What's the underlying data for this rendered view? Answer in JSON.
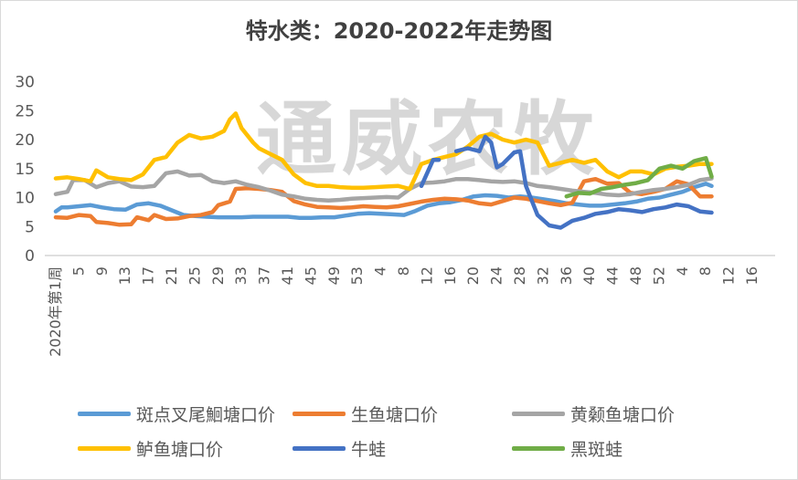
{
  "chart_data": {
    "type": "line",
    "title": "特水类：2020-2022年走势图",
    "watermark": "通威农牧",
    "ylim": [
      0,
      30
    ],
    "yticks": [
      0,
      5,
      10,
      15,
      20,
      25,
      30
    ],
    "xticks": [
      "2020年第1周",
      "5",
      "9",
      "13",
      "17",
      "21",
      "25",
      "29",
      "33",
      "37",
      "41",
      "45",
      "49",
      "53",
      "4",
      "8",
      "12",
      "16",
      "20",
      "24",
      "28",
      "32",
      "36",
      "40",
      "44",
      "48",
      "52",
      "4",
      "8",
      "12",
      "16"
    ],
    "series": [
      {
        "name": "斑点叉尾鮰塘口价",
        "color": "#5b9bd5",
        "values": [
          [
            1,
            7.6
          ],
          [
            2,
            8.3
          ],
          [
            3,
            8.3
          ],
          [
            6,
            8.6
          ],
          [
            7,
            8.7
          ],
          [
            9,
            8.3
          ],
          [
            11,
            8.0
          ],
          [
            13,
            7.9
          ],
          [
            15,
            8.8
          ],
          [
            17,
            9.0
          ],
          [
            19,
            8.6
          ],
          [
            21,
            7.8
          ],
          [
            23,
            7.0
          ],
          [
            25,
            6.8
          ],
          [
            27,
            6.7
          ],
          [
            29,
            6.6
          ],
          [
            31,
            6.6
          ],
          [
            33,
            6.6
          ],
          [
            35,
            6.7
          ],
          [
            37,
            6.7
          ],
          [
            39,
            6.7
          ],
          [
            41,
            6.7
          ],
          [
            43,
            6.5
          ],
          [
            45,
            6.5
          ],
          [
            47,
            6.6
          ],
          [
            49,
            6.6
          ],
          [
            51,
            6.9
          ],
          [
            53,
            7.2
          ],
          [
            55,
            7.3
          ],
          [
            57,
            7.2
          ],
          [
            59,
            7.1
          ],
          [
            61,
            7.0
          ],
          [
            63,
            7.7
          ],
          [
            65,
            8.6
          ],
          [
            67,
            9.0
          ],
          [
            69,
            9.2
          ],
          [
            71,
            9.6
          ],
          [
            73,
            10.2
          ],
          [
            75,
            10.4
          ],
          [
            77,
            10.3
          ],
          [
            79,
            10.0
          ],
          [
            81,
            10.2
          ],
          [
            83,
            10.0
          ],
          [
            85,
            9.7
          ],
          [
            87,
            9.4
          ],
          [
            89,
            9.0
          ],
          [
            91,
            8.8
          ],
          [
            93,
            8.6
          ],
          [
            95,
            8.6
          ],
          [
            97,
            8.8
          ],
          [
            99,
            9.0
          ],
          [
            101,
            9.3
          ],
          [
            103,
            9.8
          ],
          [
            105,
            10.0
          ],
          [
            107,
            10.5
          ],
          [
            109,
            11.0
          ],
          [
            111,
            11.8
          ],
          [
            113,
            12.4
          ],
          [
            114,
            12.0
          ]
        ]
      },
      {
        "name": "生鱼塘口价",
        "color": "#ed7d31",
        "values": [
          [
            1,
            6.6
          ],
          [
            3,
            6.5
          ],
          [
            5,
            7.0
          ],
          [
            7,
            6.8
          ],
          [
            8,
            5.8
          ],
          [
            10,
            5.6
          ],
          [
            12,
            5.3
          ],
          [
            14,
            5.4
          ],
          [
            15,
            6.6
          ],
          [
            17,
            6.1
          ],
          [
            18,
            7.0
          ],
          [
            20,
            6.3
          ],
          [
            22,
            6.4
          ],
          [
            24,
            6.8
          ],
          [
            26,
            7.0
          ],
          [
            28,
            7.5
          ],
          [
            29,
            8.7
          ],
          [
            31,
            9.3
          ],
          [
            32,
            11.5
          ],
          [
            34,
            11.6
          ],
          [
            36,
            11.5
          ],
          [
            38,
            11.3
          ],
          [
            40,
            11.0
          ],
          [
            42,
            9.4
          ],
          [
            44,
            8.8
          ],
          [
            46,
            8.4
          ],
          [
            48,
            8.3
          ],
          [
            50,
            8.2
          ],
          [
            52,
            8.3
          ],
          [
            54,
            8.5
          ],
          [
            56,
            8.4
          ],
          [
            58,
            8.3
          ],
          [
            60,
            8.5
          ],
          [
            62,
            8.9
          ],
          [
            64,
            9.3
          ],
          [
            66,
            9.6
          ],
          [
            68,
            9.8
          ],
          [
            70,
            9.7
          ],
          [
            72,
            9.5
          ],
          [
            74,
            9.0
          ],
          [
            76,
            8.8
          ],
          [
            78,
            9.4
          ],
          [
            80,
            10.0
          ],
          [
            82,
            9.8
          ],
          [
            84,
            9.4
          ],
          [
            86,
            9.0
          ],
          [
            88,
            8.7
          ],
          [
            90,
            9.1
          ],
          [
            92,
            12.8
          ],
          [
            94,
            13.2
          ],
          [
            96,
            12.4
          ],
          [
            98,
            12.5
          ],
          [
            100,
            10.8
          ],
          [
            102,
            10.6
          ],
          [
            104,
            11.0
          ],
          [
            106,
            11.5
          ],
          [
            108,
            12.8
          ],
          [
            110,
            12.3
          ],
          [
            112,
            10.2
          ],
          [
            114,
            10.2
          ]
        ]
      },
      {
        "name": "黄颡鱼塘口价",
        "color": "#a5a5a5",
        "values": [
          [
            1,
            10.6
          ],
          [
            3,
            11.0
          ],
          [
            4,
            13.0
          ],
          [
            6,
            13.0
          ],
          [
            8,
            11.8
          ],
          [
            10,
            12.5
          ],
          [
            12,
            12.8
          ],
          [
            14,
            11.9
          ],
          [
            16,
            11.8
          ],
          [
            18,
            12.0
          ],
          [
            20,
            14.2
          ],
          [
            22,
            14.5
          ],
          [
            24,
            13.8
          ],
          [
            26,
            13.9
          ],
          [
            28,
            12.8
          ],
          [
            30,
            12.5
          ],
          [
            32,
            12.8
          ],
          [
            34,
            12.2
          ],
          [
            36,
            11.8
          ],
          [
            38,
            11.2
          ],
          [
            40,
            10.5
          ],
          [
            42,
            10.2
          ],
          [
            44,
            9.8
          ],
          [
            46,
            9.6
          ],
          [
            48,
            9.5
          ],
          [
            50,
            9.6
          ],
          [
            52,
            9.8
          ],
          [
            54,
            9.9
          ],
          [
            56,
            10.0
          ],
          [
            58,
            10.1
          ],
          [
            60,
            10.0
          ],
          [
            62,
            11.5
          ],
          [
            64,
            12.5
          ],
          [
            66,
            12.6
          ],
          [
            68,
            12.8
          ],
          [
            70,
            13.2
          ],
          [
            72,
            13.2
          ],
          [
            74,
            13.0
          ],
          [
            76,
            12.8
          ],
          [
            78,
            12.7
          ],
          [
            80,
            12.8
          ],
          [
            82,
            12.5
          ],
          [
            84,
            12.0
          ],
          [
            86,
            11.8
          ],
          [
            88,
            11.5
          ],
          [
            90,
            11.2
          ],
          [
            92,
            11.0
          ],
          [
            94,
            10.8
          ],
          [
            96,
            10.5
          ],
          [
            98,
            10.4
          ],
          [
            100,
            10.6
          ],
          [
            102,
            11.0
          ],
          [
            104,
            11.3
          ],
          [
            106,
            11.5
          ],
          [
            108,
            11.8
          ],
          [
            110,
            12.2
          ],
          [
            112,
            13.0
          ],
          [
            114,
            13.3
          ]
        ]
      },
      {
        "name": "鲈鱼塘口价",
        "color": "#ffc000",
        "values": [
          [
            1,
            13.3
          ],
          [
            3,
            13.5
          ],
          [
            5,
            13.2
          ],
          [
            7,
            12.8
          ],
          [
            8,
            14.7
          ],
          [
            10,
            13.5
          ],
          [
            12,
            13.2
          ],
          [
            14,
            13.0
          ],
          [
            16,
            14.0
          ],
          [
            18,
            16.5
          ],
          [
            20,
            17.0
          ],
          [
            22,
            19.5
          ],
          [
            24,
            20.8
          ],
          [
            26,
            20.2
          ],
          [
            28,
            20.5
          ],
          [
            30,
            21.5
          ],
          [
            31,
            23.5
          ],
          [
            32,
            24.5
          ],
          [
            33,
            22.0
          ],
          [
            35,
            19.5
          ],
          [
            36,
            18.5
          ],
          [
            38,
            17.5
          ],
          [
            40,
            16.5
          ],
          [
            42,
            14.0
          ],
          [
            44,
            12.5
          ],
          [
            46,
            12.0
          ],
          [
            48,
            12.0
          ],
          [
            50,
            11.8
          ],
          [
            52,
            11.7
          ],
          [
            54,
            11.7
          ],
          [
            56,
            11.8
          ],
          [
            58,
            11.9
          ],
          [
            60,
            12.0
          ],
          [
            62,
            11.5
          ],
          [
            64,
            15.8
          ],
          [
            66,
            16.5
          ],
          [
            68,
            17.0
          ],
          [
            70,
            17.5
          ],
          [
            72,
            18.8
          ],
          [
            74,
            20.5
          ],
          [
            76,
            21.0
          ],
          [
            78,
            20.0
          ],
          [
            80,
            19.5
          ],
          [
            82,
            20.0
          ],
          [
            84,
            19.5
          ],
          [
            86,
            15.5
          ],
          [
            88,
            16.0
          ],
          [
            90,
            16.5
          ],
          [
            92,
            16.0
          ],
          [
            94,
            16.5
          ],
          [
            96,
            14.5
          ],
          [
            98,
            13.5
          ],
          [
            100,
            14.5
          ],
          [
            102,
            14.5
          ],
          [
            104,
            14.0
          ],
          [
            106,
            15.0
          ],
          [
            108,
            15.3
          ],
          [
            110,
            15.5
          ],
          [
            112,
            15.8
          ],
          [
            114,
            15.8
          ]
        ]
      },
      {
        "name": "牛蛙",
        "color": "#4472c4",
        "values": [
          [
            64,
            12.0
          ],
          [
            66,
            16.5
          ],
          [
            67,
            16.5
          ]
        ]
      },
      {
        "name": "牛蛙",
        "color": "#4472c4",
        "values": [
          [
            70,
            18.0
          ],
          [
            72,
            18.5
          ],
          [
            74,
            18.0
          ],
          [
            75,
            20.5
          ],
          [
            76,
            19.5
          ],
          [
            77,
            15.2
          ],
          [
            78,
            15.8
          ],
          [
            80,
            17.8
          ],
          [
            81,
            18.0
          ],
          [
            82,
            12.0
          ],
          [
            84,
            7.0
          ],
          [
            86,
            5.2
          ],
          [
            88,
            4.8
          ],
          [
            90,
            6.0
          ],
          [
            92,
            6.5
          ],
          [
            94,
            7.2
          ],
          [
            96,
            7.5
          ],
          [
            98,
            8.0
          ],
          [
            100,
            7.8
          ],
          [
            102,
            7.5
          ],
          [
            104,
            8.0
          ],
          [
            106,
            8.3
          ],
          [
            108,
            8.8
          ],
          [
            110,
            8.5
          ],
          [
            112,
            7.6
          ],
          [
            114,
            7.4
          ]
        ]
      },
      {
        "name": "黑斑蛙",
        "color": "#70ad47",
        "values": [
          [
            89,
            10.2
          ],
          [
            91,
            10.8
          ],
          [
            93,
            10.7
          ],
          [
            95,
            11.5
          ],
          [
            97,
            11.8
          ],
          [
            99,
            12.2
          ],
          [
            101,
            12.5
          ],
          [
            103,
            13.0
          ],
          [
            105,
            15.0
          ],
          [
            107,
            15.5
          ],
          [
            109,
            15.0
          ],
          [
            111,
            16.3
          ],
          [
            113,
            16.8
          ],
          [
            114,
            13.6
          ]
        ]
      }
    ],
    "legend": {
      "position": "bottom",
      "entries": [
        {
          "label": "斑点叉尾鮰塘口价",
          "color": "#5b9bd5"
        },
        {
          "label": "生鱼塘口价",
          "color": "#ed7d31"
        },
        {
          "label": "黄颡鱼塘口价",
          "color": "#a5a5a5"
        },
        {
          "label": "鲈鱼塘口价",
          "color": "#ffc000"
        },
        {
          "label": "牛蛙",
          "color": "#4472c4"
        },
        {
          "label": "黑斑蛙",
          "color": "#70ad47"
        }
      ]
    }
  }
}
